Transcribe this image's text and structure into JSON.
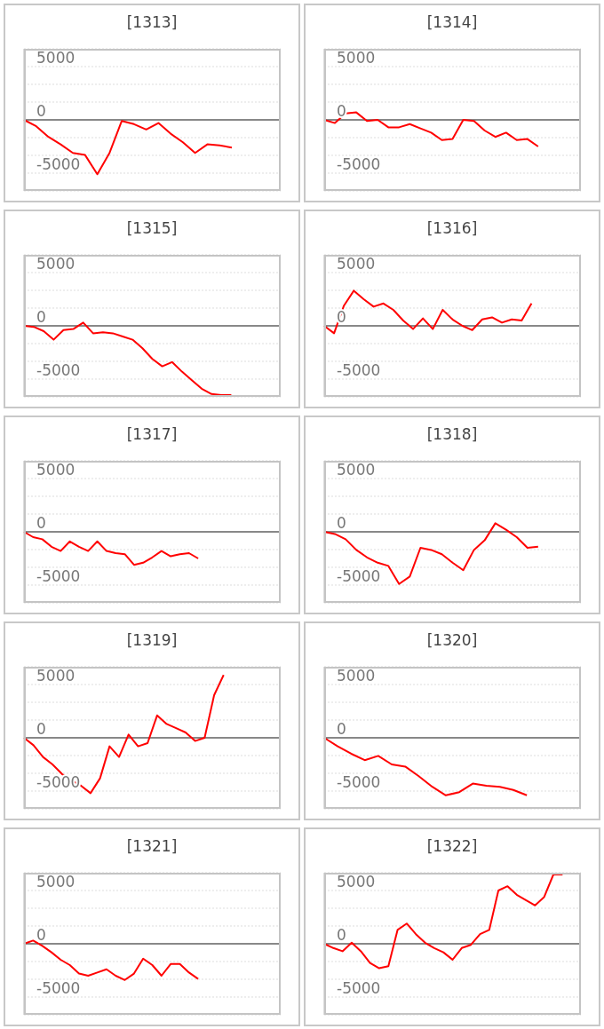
{
  "chart_data": [
    {
      "type": "line",
      "title": "[1313]",
      "categories": [
        null,
        null,
        null,
        null,
        null,
        null,
        null,
        null,
        null,
        null,
        null,
        null,
        null,
        null,
        null,
        null,
        null,
        null,
        null,
        null,
        null,
        null
      ],
      "color": "#ff0000",
      "values": [
        0,
        -600,
        -1600,
        -2300,
        -3100,
        -3300,
        -5100,
        -3100,
        -100,
        -400,
        -900,
        -300,
        -1300,
        -2100,
        -3100,
        -2300,
        -2400,
        -2600,
        null,
        null,
        null,
        null
      ],
      "ylim": [
        -6667,
        6667
      ],
      "yticks": [
        -5000,
        {
          "value": -3333,
          "label": null
        },
        {
          "value": -1667,
          "label": null
        },
        0,
        {
          "value": 1667,
          "label": null
        },
        {
          "value": 3333,
          "label": null
        },
        5000
      ],
      "grid": "y",
      "tick_labels": "y",
      "marker": "none",
      "ref_lines": [
        {
          "axis": "y",
          "value": 0,
          "color": "#888888"
        }
      ]
    },
    {
      "type": "line",
      "title": "[1314]",
      "categories": [
        null,
        null,
        null,
        null,
        null,
        null,
        null,
        null,
        null,
        null,
        null,
        null,
        null,
        null,
        null,
        null,
        null,
        null,
        null,
        null,
        null,
        null,
        null,
        null,
        null
      ],
      "color": "#ff0000",
      "values": [
        0,
        -300,
        600,
        700,
        -100,
        0,
        -700,
        -700,
        -400,
        -800,
        -1200,
        -1900,
        -1800,
        0,
        -100,
        -1000,
        -1600,
        -1200,
        -1900,
        -1800,
        -2500,
        null,
        null,
        null,
        null
      ],
      "ylim": [
        -6667,
        6667
      ],
      "yticks": [
        -5000,
        {
          "value": -3333,
          "label": null
        },
        {
          "value": -1667,
          "label": null
        },
        0,
        {
          "value": 1667,
          "label": null
        },
        {
          "value": 3333,
          "label": null
        },
        5000
      ],
      "grid": "y",
      "tick_labels": "y",
      "marker": "none",
      "ref_lines": [
        {
          "axis": "y",
          "value": 0,
          "color": "#888888"
        }
      ]
    },
    {
      "type": "line",
      "title": "[1315]",
      "categories": [
        null,
        null,
        null,
        null,
        null,
        null,
        null,
        null,
        null,
        null,
        null,
        null,
        null,
        null,
        null,
        null,
        null,
        null,
        null,
        null,
        null,
        null,
        null,
        null,
        null,
        null,
        null
      ],
      "color": "#ff0000",
      "values": [
        0,
        -100,
        -500,
        -1300,
        -400,
        -300,
        300,
        -700,
        -600,
        -700,
        -1000,
        -1300,
        -2100,
        -3100,
        -3800,
        -3400,
        -4300,
        -5100,
        -5900,
        -6400,
        -6500,
        -6500,
        null,
        null,
        null,
        null,
        null
      ],
      "ylim": [
        -6667,
        6667
      ],
      "yticks": [
        -5000,
        {
          "value": -3333,
          "label": null
        },
        {
          "value": -1667,
          "label": null
        },
        0,
        {
          "value": 1667,
          "label": null
        },
        {
          "value": 3333,
          "label": null
        },
        5000
      ],
      "grid": "y",
      "tick_labels": "y",
      "marker": "none",
      "ref_lines": [
        {
          "axis": "y",
          "value": 0,
          "color": "#888888"
        }
      ]
    },
    {
      "type": "line",
      "title": "[1316]",
      "categories": [
        null,
        null,
        null,
        null,
        null,
        null,
        null,
        null,
        null,
        null,
        null,
        null,
        null,
        null,
        null,
        null,
        null,
        null,
        null,
        null,
        null,
        null,
        null,
        null,
        null,
        null,
        null
      ],
      "color": "#ff0000",
      "values": [
        0,
        -700,
        1900,
        3300,
        2500,
        1800,
        2100,
        1500,
        500,
        -300,
        700,
        -300,
        1500,
        600,
        0,
        -400,
        600,
        800,
        300,
        600,
        500,
        2100,
        null,
        null,
        null,
        null,
        null
      ],
      "ylim": [
        -6667,
        6667
      ],
      "yticks": [
        -5000,
        {
          "value": -3333,
          "label": null
        },
        {
          "value": -1667,
          "label": null
        },
        0,
        {
          "value": 1667,
          "label": null
        },
        {
          "value": 3333,
          "label": null
        },
        5000
      ],
      "grid": "y",
      "tick_labels": "y",
      "marker": "none",
      "ref_lines": [
        {
          "axis": "y",
          "value": 0,
          "color": "#888888"
        }
      ]
    },
    {
      "type": "line",
      "title": "[1317]",
      "categories": [
        null,
        null,
        null,
        null,
        null,
        null,
        null,
        null,
        null,
        null,
        null,
        null,
        null,
        null,
        null,
        null,
        null,
        null,
        null,
        null,
        null,
        null,
        null,
        null,
        null,
        null,
        null,
        null,
        null
      ],
      "color": "#ff0000",
      "values": [
        0,
        -500,
        -700,
        -1400,
        -1800,
        -900,
        -1400,
        -1800,
        -900,
        -1800,
        -2000,
        -2100,
        -3100,
        -2900,
        -2400,
        -1800,
        -2300,
        -2100,
        -2000,
        -2500,
        null,
        null,
        null,
        null,
        null,
        null,
        null,
        null,
        null
      ],
      "ylim": [
        -6667,
        6667
      ],
      "yticks": [
        -5000,
        {
          "value": -3333,
          "label": null
        },
        {
          "value": -1667,
          "label": null
        },
        0,
        {
          "value": 1667,
          "label": null
        },
        {
          "value": 3333,
          "label": null
        },
        5000
      ],
      "grid": "y",
      "tick_labels": "y",
      "marker": "none",
      "ref_lines": [
        {
          "axis": "y",
          "value": 0,
          "color": "#888888"
        }
      ]
    },
    {
      "type": "line",
      "title": "[1318]",
      "categories": [
        null,
        null,
        null,
        null,
        null,
        null,
        null,
        null,
        null,
        null,
        null,
        null,
        null,
        null,
        null,
        null,
        null,
        null,
        null,
        null,
        null,
        null,
        null,
        null,
        null
      ],
      "color": "#ff0000",
      "values": [
        0,
        -200,
        -700,
        -1700,
        -2400,
        -2900,
        -3200,
        -4900,
        -4200,
        -1500,
        -1700,
        -2100,
        -2900,
        -3600,
        -1700,
        -800,
        800,
        200,
        -500,
        -1500,
        -1400,
        null,
        null,
        null,
        null
      ],
      "ylim": [
        -6667,
        6667
      ],
      "yticks": [
        -5000,
        {
          "value": -3333,
          "label": null
        },
        {
          "value": -1667,
          "label": null
        },
        0,
        {
          "value": 1667,
          "label": null
        },
        {
          "value": 3333,
          "label": null
        },
        5000
      ],
      "grid": "y",
      "tick_labels": "y",
      "marker": "none",
      "ref_lines": [
        {
          "axis": "y",
          "value": 0,
          "color": "#888888"
        }
      ]
    },
    {
      "type": "line",
      "title": "[1319]",
      "categories": [
        null,
        null,
        null,
        null,
        null,
        null,
        null,
        null,
        null,
        null,
        null,
        null,
        null,
        null,
        null,
        null,
        null,
        null,
        null,
        null,
        null,
        null,
        null,
        null,
        null,
        null,
        null,
        null
      ],
      "color": "#ff0000",
      "values": [
        0,
        -700,
        -1800,
        -2500,
        -3400,
        -4000,
        -4500,
        -5200,
        -3800,
        -800,
        -1800,
        300,
        -800,
        -500,
        2100,
        1300,
        900,
        500,
        -300,
        0,
        4000,
        5900,
        null,
        null,
        null,
        null,
        null,
        null
      ],
      "ylim": [
        -6667,
        6667
      ],
      "yticks": [
        -5000,
        {
          "value": -3333,
          "label": null
        },
        {
          "value": -1667,
          "label": null
        },
        0,
        {
          "value": 1667,
          "label": null
        },
        {
          "value": 3333,
          "label": null
        },
        5000
      ],
      "grid": "y",
      "tick_labels": "y",
      "marker": "none",
      "ref_lines": [
        {
          "axis": "y",
          "value": 0,
          "color": "#888888"
        }
      ]
    },
    {
      "type": "line",
      "title": "[1320]",
      "categories": [
        null,
        null,
        null,
        null,
        null,
        null,
        null,
        null,
        null,
        null,
        null,
        null,
        null,
        null,
        null,
        null,
        null,
        null,
        null,
        null
      ],
      "color": "#ff0000",
      "values": [
        0,
        -800,
        -1500,
        -2100,
        -1700,
        -2500,
        -2700,
        -3600,
        -4600,
        -5400,
        -5100,
        -4300,
        -4500,
        -4600,
        -4900,
        -5400,
        null,
        null,
        null,
        null
      ],
      "ylim": [
        -6667,
        6667
      ],
      "yticks": [
        -5000,
        {
          "value": -3333,
          "label": null
        },
        {
          "value": -1667,
          "label": null
        },
        0,
        {
          "value": 1667,
          "label": null
        },
        {
          "value": 3333,
          "label": null
        },
        5000
      ],
      "grid": "y",
      "tick_labels": "y",
      "marker": "none",
      "ref_lines": [
        {
          "axis": "y",
          "value": 0,
          "color": "#888888"
        }
      ]
    },
    {
      "type": "line",
      "title": "[1321]",
      "categories": [
        null,
        null,
        null,
        null,
        null,
        null,
        null,
        null,
        null,
        null,
        null,
        null,
        null,
        null,
        null,
        null,
        null,
        null,
        null,
        null,
        null,
        null,
        null,
        null,
        null,
        null,
        null,
        null,
        null
      ],
      "color": "#ff0000",
      "values": [
        0,
        300,
        -200,
        -800,
        -1500,
        -2000,
        -2800,
        -3000,
        -2700,
        -2400,
        -3000,
        -3400,
        -2800,
        -1400,
        -2000,
        -3000,
        -1900,
        -1900,
        -2700,
        -3300,
        null,
        null,
        null,
        null,
        null,
        null,
        null,
        null,
        null
      ],
      "ylim": [
        -6667,
        6667
      ],
      "yticks": [
        -5000,
        {
          "value": -3333,
          "label": null
        },
        {
          "value": -1667,
          "label": null
        },
        0,
        {
          "value": 1667,
          "label": null
        },
        {
          "value": 3333,
          "label": null
        },
        5000
      ],
      "grid": "y",
      "tick_labels": "y",
      "marker": "none",
      "ref_lines": [
        {
          "axis": "y",
          "value": 0,
          "color": "#888888"
        }
      ]
    },
    {
      "type": "line",
      "title": "[1322]",
      "categories": [
        null,
        null,
        null,
        null,
        null,
        null,
        null,
        null,
        null,
        null,
        null,
        null,
        null,
        null,
        null,
        null,
        null,
        null,
        null,
        null,
        null,
        null,
        null,
        null,
        null,
        null,
        null,
        null,
        null
      ],
      "color": "#ff0000",
      "values": [
        0,
        -400,
        -700,
        100,
        -700,
        -1800,
        -2300,
        -2100,
        1300,
        1900,
        900,
        100,
        -400,
        -800,
        -1500,
        -400,
        -100,
        900,
        1300,
        5000,
        5400,
        4600,
        4100,
        3600,
        4400,
        6500,
        6500,
        null,
        null
      ],
      "ylim": [
        -6667,
        6667
      ],
      "yticks": [
        -5000,
        {
          "value": -3333,
          "label": null
        },
        {
          "value": -1667,
          "label": null
        },
        0,
        {
          "value": 1667,
          "label": null
        },
        {
          "value": 3333,
          "label": null
        },
        5000
      ],
      "grid": "y",
      "tick_labels": "y",
      "marker": "none",
      "ref_lines": [
        {
          "axis": "y",
          "value": 0,
          "color": "#888888"
        }
      ]
    }
  ]
}
